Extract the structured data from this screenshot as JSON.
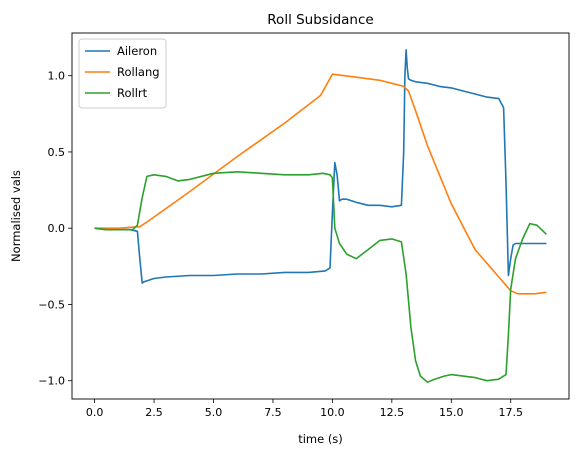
{
  "chart_data": {
    "type": "line",
    "title": "Roll Subsidance",
    "xlabel": "time (s)",
    "ylabel": "Normalised vals",
    "xlim": [
      -0.95,
      19.95
    ],
    "ylim": [
      -1.12,
      1.28
    ],
    "xticks": [
      0.0,
      2.5,
      5.0,
      7.5,
      10.0,
      12.5,
      15.0,
      17.5
    ],
    "xtick_labels": [
      "0.0",
      "2.5",
      "5.0",
      "7.5",
      "10.0",
      "12.5",
      "15.0",
      "17.5"
    ],
    "yticks": [
      -1.0,
      -0.5,
      0.0,
      0.5,
      1.0
    ],
    "ytick_labels": [
      "−1.0",
      "−0.5",
      "0.0",
      "0.5",
      "1.0"
    ],
    "grid": false,
    "legend": "top-left",
    "series": [
      {
        "name": "Aileron",
        "color": "#1f77b4",
        "x": [
          0.0,
          0.5,
          1.0,
          1.5,
          1.8,
          1.9,
          2.0,
          2.1,
          2.5,
          3.0,
          4.0,
          5.0,
          6.0,
          7.0,
          8.0,
          9.0,
          9.7,
          9.9,
          10.0,
          10.1,
          10.2,
          10.3,
          10.4,
          10.6,
          11.0,
          11.5,
          12.0,
          12.5,
          12.9,
          13.0,
          13.05,
          13.1,
          13.15,
          13.2,
          13.3,
          13.5,
          14.0,
          14.5,
          15.0,
          15.5,
          16.0,
          16.5,
          17.0,
          17.2,
          17.3,
          17.4,
          17.5,
          17.6,
          17.7,
          18.0,
          18.5,
          19.0
        ],
        "y": [
          0.0,
          -0.01,
          -0.01,
          -0.01,
          -0.02,
          -0.2,
          -0.36,
          -0.35,
          -0.33,
          -0.32,
          -0.31,
          -0.31,
          -0.3,
          -0.3,
          -0.29,
          -0.29,
          -0.28,
          -0.26,
          0.1,
          0.43,
          0.35,
          0.18,
          0.19,
          0.19,
          0.17,
          0.15,
          0.15,
          0.14,
          0.15,
          0.5,
          1.0,
          1.17,
          1.05,
          0.98,
          0.97,
          0.96,
          0.95,
          0.93,
          0.92,
          0.9,
          0.88,
          0.86,
          0.85,
          0.79,
          0.3,
          -0.31,
          -0.2,
          -0.11,
          -0.1,
          -0.1,
          -0.1,
          -0.1
        ]
      },
      {
        "name": "Rollang",
        "color": "#ff7f0e",
        "x": [
          0.0,
          1.0,
          1.9,
          2.2,
          4.0,
          6.0,
          8.0,
          9.5,
          10.0,
          10.5,
          11.0,
          12.0,
          12.5,
          13.0,
          13.2,
          13.5,
          14.0,
          15.0,
          16.0,
          17.0,
          17.5,
          17.8,
          18.0,
          18.5,
          19.0
        ],
        "y": [
          0.0,
          0.0,
          0.01,
          0.04,
          0.24,
          0.47,
          0.69,
          0.87,
          1.01,
          1.0,
          0.99,
          0.97,
          0.95,
          0.93,
          0.9,
          0.77,
          0.54,
          0.16,
          -0.14,
          -0.32,
          -0.41,
          -0.43,
          -0.43,
          -0.43,
          -0.42
        ]
      },
      {
        "name": "Rollrt",
        "color": "#2ca02c",
        "x": [
          0.0,
          0.5,
          1.0,
          1.6,
          1.8,
          2.0,
          2.2,
          2.5,
          3.0,
          3.5,
          4.0,
          5.0,
          6.0,
          7.0,
          8.0,
          9.0,
          9.6,
          9.9,
          10.0,
          10.1,
          10.3,
          10.6,
          11.0,
          11.5,
          12.0,
          12.5,
          12.9,
          13.1,
          13.3,
          13.5,
          13.7,
          14.0,
          14.3,
          14.7,
          15.0,
          15.5,
          16.0,
          16.5,
          17.0,
          17.3,
          17.4,
          17.5,
          17.7,
          18.0,
          18.3,
          18.6,
          19.0
        ],
        "y": [
          0.0,
          -0.01,
          -0.01,
          -0.01,
          0.02,
          0.2,
          0.34,
          0.35,
          0.34,
          0.31,
          0.32,
          0.36,
          0.37,
          0.36,
          0.35,
          0.35,
          0.36,
          0.35,
          0.33,
          0.0,
          -0.1,
          -0.17,
          -0.2,
          -0.14,
          -0.08,
          -0.07,
          -0.09,
          -0.3,
          -0.65,
          -0.87,
          -0.97,
          -1.01,
          -0.99,
          -0.97,
          -0.96,
          -0.97,
          -0.98,
          -1.0,
          -0.99,
          -0.96,
          -0.7,
          -0.4,
          -0.2,
          -0.07,
          0.03,
          0.02,
          -0.04
        ]
      }
    ]
  }
}
